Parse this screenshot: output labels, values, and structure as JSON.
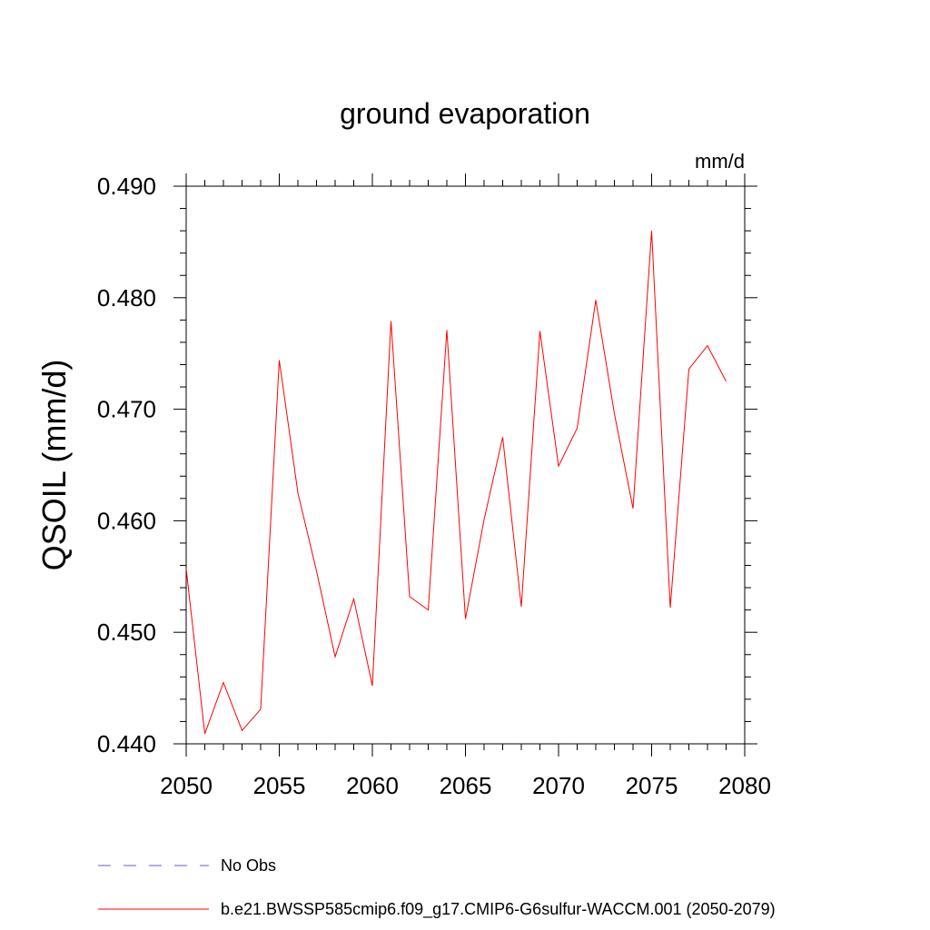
{
  "chart_data": {
    "type": "line",
    "title": "ground evaporation",
    "units": "mm/d",
    "xlabel": "",
    "ylabel": "QSOIL  (mm/d)",
    "xlim": [
      2050,
      2080
    ],
    "ylim": [
      0.44,
      0.49
    ],
    "x_ticks": [
      "2050",
      "2055",
      "2060",
      "2065",
      "2070",
      "2075",
      "2080"
    ],
    "y_ticks": [
      "0.440",
      "0.450",
      "0.460",
      "0.470",
      "0.480",
      "0.490"
    ],
    "grid": false,
    "legend_position": "bottom",
    "series": [
      {
        "name": "b.e21.BWSSP585cmip6.f09_g17.CMIP6-G6sulfur-WACCM.001 (2050-2079)",
        "color": "#ff0000",
        "x": [
          2050,
          2051,
          2052,
          2053,
          2054,
          2055,
          2056,
          2057,
          2058,
          2059,
          2060,
          2061,
          2062,
          2063,
          2064,
          2065,
          2066,
          2067,
          2068,
          2069,
          2070,
          2071,
          2072,
          2073,
          2074,
          2075,
          2076,
          2077,
          2078,
          2079
        ],
        "values": [
          0.4557,
          0.4409,
          0.4455,
          0.4412,
          0.4431,
          0.4744,
          0.4625,
          0.4555,
          0.4478,
          0.453,
          0.4452,
          0.4779,
          0.4532,
          0.452,
          0.4771,
          0.4512,
          0.4601,
          0.4675,
          0.4523,
          0.477,
          0.4649,
          0.4683,
          0.4798,
          0.4696,
          0.4611,
          0.486,
          0.4522,
          0.4736,
          0.4757,
          0.4725
        ]
      }
    ],
    "legend": [
      {
        "label": "No Obs",
        "color": "#6a5acd",
        "style": "dashed"
      },
      {
        "label": "b.e21.BWSSP585cmip6.f09_g17.CMIP6-G6sulfur-WACCM.001 (2050-2079)",
        "color": "#ff0000",
        "style": "solid"
      }
    ]
  }
}
